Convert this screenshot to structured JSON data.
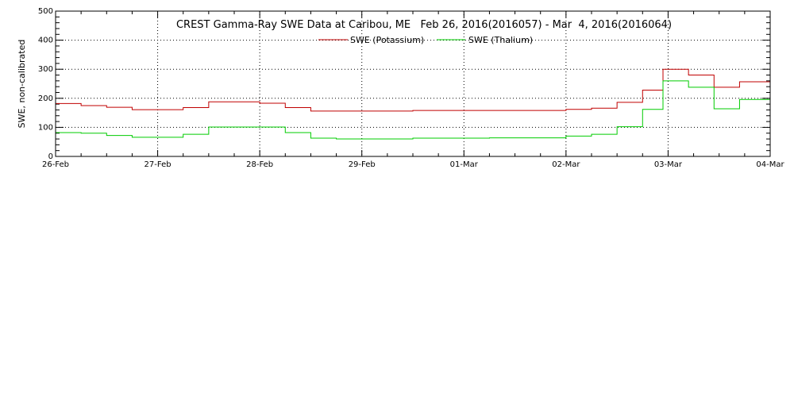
{
  "chart_data": {
    "type": "line",
    "title": "CREST Gamma-Ray SWE Data at Caribou, ME   Feb 26, 2016(2016057) - Mar  4, 2016(2016064)",
    "ylabel": "SWE, non-calibrated",
    "xlabel": "",
    "x_unit": "day",
    "xlim": [
      0,
      7
    ],
    "ylim": [
      0,
      500
    ],
    "x_ticks": [
      {
        "value": 0,
        "label": "26-Feb"
      },
      {
        "value": 1,
        "label": "27-Feb"
      },
      {
        "value": 2,
        "label": "28-Feb"
      },
      {
        "value": 3,
        "label": "29-Feb"
      },
      {
        "value": 4,
        "label": "01-Mar"
      },
      {
        "value": 5,
        "label": "02-Mar"
      },
      {
        "value": 6,
        "label": "03-Mar"
      },
      {
        "value": 7,
        "label": "04-Mar"
      }
    ],
    "y_ticks": [
      0,
      100,
      200,
      300,
      400,
      500
    ],
    "grid": true,
    "legend_position": "top-center",
    "series": [
      {
        "name": "SWE (Potassium)",
        "color": "#c00000",
        "step": true,
        "points": [
          [
            0.0,
            182
          ],
          [
            0.25,
            182
          ],
          [
            0.25,
            175
          ],
          [
            0.5,
            175
          ],
          [
            0.5,
            169
          ],
          [
            0.75,
            169
          ],
          [
            0.75,
            161
          ],
          [
            1.25,
            161
          ],
          [
            1.25,
            168
          ],
          [
            1.5,
            168
          ],
          [
            1.5,
            188
          ],
          [
            2.0,
            188
          ],
          [
            2.0,
            183
          ],
          [
            2.25,
            183
          ],
          [
            2.25,
            168
          ],
          [
            2.5,
            168
          ],
          [
            2.5,
            156
          ],
          [
            3.5,
            156
          ],
          [
            3.5,
            158
          ],
          [
            5.0,
            158
          ],
          [
            5.0,
            162
          ],
          [
            5.25,
            162
          ],
          [
            5.25,
            166
          ],
          [
            5.5,
            166
          ],
          [
            5.5,
            186
          ],
          [
            5.75,
            186
          ],
          [
            5.75,
            228
          ],
          [
            5.95,
            228
          ],
          [
            5.95,
            300
          ],
          [
            6.2,
            300
          ],
          [
            6.2,
            280
          ],
          [
            6.45,
            280
          ],
          [
            6.45,
            238
          ],
          [
            6.7,
            238
          ],
          [
            6.7,
            257
          ],
          [
            7.0,
            257
          ]
        ]
      },
      {
        "name": "SWE (Thalium)",
        "color": "#00cc00",
        "step": true,
        "points": [
          [
            0.0,
            82
          ],
          [
            0.25,
            82
          ],
          [
            0.25,
            80
          ],
          [
            0.5,
            80
          ],
          [
            0.5,
            72
          ],
          [
            0.75,
            72
          ],
          [
            0.75,
            66
          ],
          [
            1.25,
            66
          ],
          [
            1.25,
            76
          ],
          [
            1.5,
            76
          ],
          [
            1.5,
            101
          ],
          [
            2.25,
            101
          ],
          [
            2.25,
            82
          ],
          [
            2.5,
            82
          ],
          [
            2.5,
            63
          ],
          [
            2.75,
            63
          ],
          [
            2.75,
            60
          ],
          [
            3.5,
            60
          ],
          [
            3.5,
            63
          ],
          [
            4.25,
            63
          ],
          [
            4.25,
            64
          ],
          [
            5.0,
            64
          ],
          [
            5.0,
            70
          ],
          [
            5.25,
            70
          ],
          [
            5.25,
            76
          ],
          [
            5.5,
            76
          ],
          [
            5.5,
            102
          ],
          [
            5.75,
            102
          ],
          [
            5.75,
            162
          ],
          [
            5.95,
            162
          ],
          [
            5.95,
            260
          ],
          [
            6.2,
            260
          ],
          [
            6.2,
            238
          ],
          [
            6.45,
            238
          ],
          [
            6.45,
            164
          ],
          [
            6.7,
            164
          ],
          [
            6.7,
            196
          ],
          [
            7.0,
            196
          ]
        ]
      }
    ]
  }
}
